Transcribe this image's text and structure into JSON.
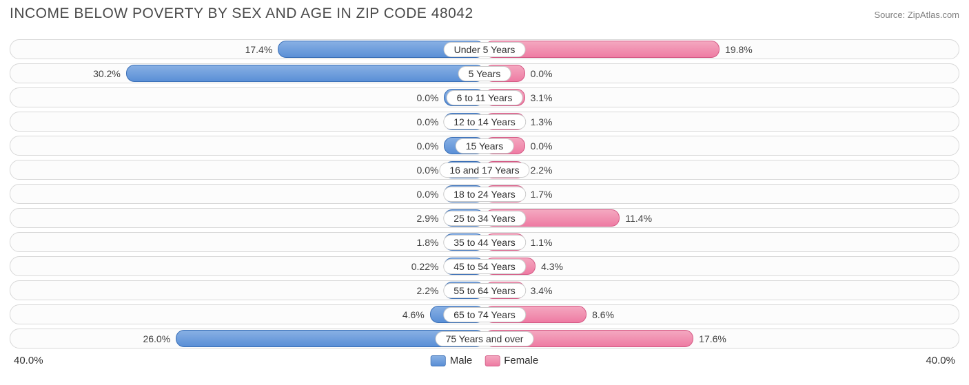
{
  "title": "INCOME BELOW POVERTY BY SEX AND AGE IN ZIP CODE 48042",
  "source": "Source: ZipAtlas.com",
  "chart": {
    "type": "diverging-bar",
    "axis_max": 40.0,
    "axis_label_left": "40.0%",
    "axis_label_right": "40.0%",
    "min_bar_pct": 8.5,
    "background_color": "#ffffff",
    "row_bg_color": "#fcfcfc",
    "row_border_color": "#d8d8d8",
    "male_color_top": "#88b0e4",
    "male_color_bottom": "#5a8fd6",
    "male_border": "#3a6fb6",
    "female_color_top": "#f4a8c0",
    "female_color_bottom": "#ee7ba3",
    "female_border": "#d45a85",
    "title_fontsize": 21,
    "label_fontsize": 14,
    "legend": {
      "male": "Male",
      "female": "Female"
    },
    "rows": [
      {
        "category": "Under 5 Years",
        "male": 17.4,
        "male_label": "17.4%",
        "female": 19.8,
        "female_label": "19.8%"
      },
      {
        "category": "5 Years",
        "male": 30.2,
        "male_label": "30.2%",
        "female": 0.0,
        "female_label": "0.0%"
      },
      {
        "category": "6 to 11 Years",
        "male": 0.0,
        "male_label": "0.0%",
        "female": 3.1,
        "female_label": "3.1%"
      },
      {
        "category": "12 to 14 Years",
        "male": 0.0,
        "male_label": "0.0%",
        "female": 1.3,
        "female_label": "1.3%"
      },
      {
        "category": "15 Years",
        "male": 0.0,
        "male_label": "0.0%",
        "female": 0.0,
        "female_label": "0.0%"
      },
      {
        "category": "16 and 17 Years",
        "male": 0.0,
        "male_label": "0.0%",
        "female": 2.2,
        "female_label": "2.2%"
      },
      {
        "category": "18 to 24 Years",
        "male": 0.0,
        "male_label": "0.0%",
        "female": 1.7,
        "female_label": "1.7%"
      },
      {
        "category": "25 to 34 Years",
        "male": 2.9,
        "male_label": "2.9%",
        "female": 11.4,
        "female_label": "11.4%"
      },
      {
        "category": "35 to 44 Years",
        "male": 1.8,
        "male_label": "1.8%",
        "female": 1.1,
        "female_label": "1.1%"
      },
      {
        "category": "45 to 54 Years",
        "male": 0.22,
        "male_label": "0.22%",
        "female": 4.3,
        "female_label": "4.3%"
      },
      {
        "category": "55 to 64 Years",
        "male": 2.2,
        "male_label": "2.2%",
        "female": 3.4,
        "female_label": "3.4%"
      },
      {
        "category": "65 to 74 Years",
        "male": 4.6,
        "male_label": "4.6%",
        "female": 8.6,
        "female_label": "8.6%"
      },
      {
        "category": "75 Years and over",
        "male": 26.0,
        "male_label": "26.0%",
        "female": 17.6,
        "female_label": "17.6%"
      }
    ]
  }
}
